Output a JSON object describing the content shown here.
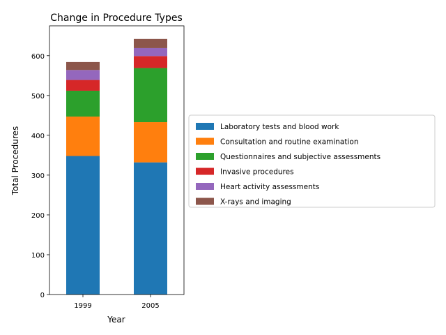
{
  "chart_data": {
    "type": "bar",
    "stacked": true,
    "title": "Change in Procedure Types",
    "xlabel": "Year",
    "ylabel": "Total Procedures",
    "categories": [
      "1999",
      "2005"
    ],
    "ylim": [
      0,
      675
    ],
    "yticks": [
      0,
      100,
      200,
      300,
      400,
      500,
      600
    ],
    "grid": false,
    "legend_position": "right",
    "series": [
      {
        "name": "Laboratory tests and blood work",
        "values": [
          348,
          332
        ],
        "color": "#1f77b4"
      },
      {
        "name": "Consultation and routine examination",
        "values": [
          99,
          101
        ],
        "color": "#ff7f0e"
      },
      {
        "name": "Questionnaires and subjective assessments",
        "values": [
          65,
          136
        ],
        "color": "#2ca02c"
      },
      {
        "name": "Invasive procedures",
        "values": [
          27,
          30
        ],
        "color": "#d62728"
      },
      {
        "name": "Heart activity assessments",
        "values": [
          25,
          20
        ],
        "color": "#9467bd"
      },
      {
        "name": "X-rays and imaging",
        "values": [
          20,
          23
        ],
        "color": "#8c564b"
      }
    ]
  }
}
